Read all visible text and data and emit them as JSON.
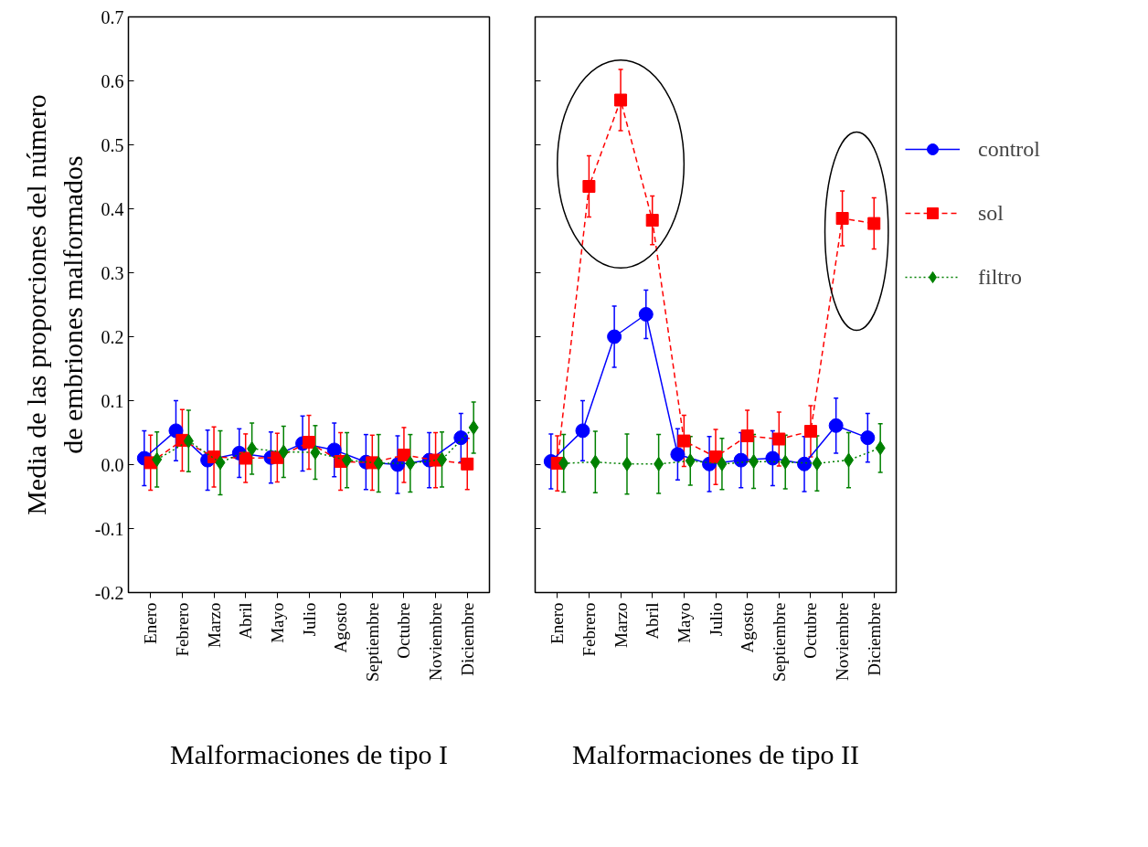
{
  "chart_data": [
    {
      "type": "line",
      "xlabel": "Malformaciones de tipo I",
      "ylabel": "Media de las proporciones del número de embriones malformados",
      "categories": [
        "Enero",
        "Febrero",
        "Marzo",
        "Abril",
        "Mayo",
        "Julio",
        "Agosto",
        "Septiembre",
        "Octubre",
        "Noviembre",
        "Diciembre"
      ],
      "ylim": [
        -0.2,
        0.7
      ],
      "yticks": [
        -0.2,
        -0.1,
        {
          "value": 0,
          "label": "0.0"
        },
        0.1,
        0.2,
        0.3,
        0.4,
        0.5,
        0.6,
        0.7
      ],
      "grid": false,
      "series": [
        {
          "color": "#0000ff",
          "marker": "circle",
          "line_style": "solid",
          "values": [
            0.01,
            0.053,
            0.007,
            0.018,
            0.011,
            0.033,
            0.023,
            0.004,
            0.0,
            0.007,
            0.042
          ],
          "errors": [
            0.043,
            0.047,
            0.047,
            0.038,
            0.04,
            0.043,
            0.042,
            0.043,
            0.045,
            0.043,
            0.038
          ]
        },
        {
          "color": "#ff0000",
          "marker": "square",
          "line_style": "dashed",
          "values": [
            0.003,
            0.038,
            0.012,
            0.01,
            0.011,
            0.035,
            0.005,
            0.003,
            0.015,
            0.007,
            0.001
          ],
          "errors": [
            0.043,
            0.048,
            0.047,
            0.038,
            0.038,
            0.042,
            0.045,
            0.043,
            0.043,
            0.043,
            0.04
          ]
        },
        {
          "color": "#008000",
          "marker": "diamond",
          "line_style": "dotted",
          "values": [
            0.008,
            0.037,
            0.003,
            0.025,
            0.02,
            0.019,
            0.007,
            0.002,
            0.002,
            0.008,
            0.058
          ],
          "errors": [
            0.043,
            0.048,
            0.05,
            0.04,
            0.04,
            0.042,
            0.043,
            0.045,
            0.045,
            0.043,
            0.04
          ]
        }
      ]
    },
    {
      "type": "line",
      "xlabel": "Malformaciones de tipo II",
      "categories": [
        "Enero",
        "Febrero",
        "Marzo",
        "Abril",
        "Mayo",
        "Julio",
        "Agosto",
        "Septiembre",
        "Octubre",
        "Noviembre",
        "Diciembre"
      ],
      "ylim": [
        -0.2,
        0.7
      ],
      "yticks": [
        -0.2,
        -0.1,
        0,
        0.1,
        0.2,
        0.3,
        0.4,
        0.5,
        0.6,
        0.7
      ],
      "tick_labels": "x",
      "grid": false,
      "legend": "right",
      "series": [
        {
          "name": "control",
          "color": "#0000ff",
          "marker": "circle",
          "line_style": "solid",
          "values": [
            0.005,
            0.053,
            0.2,
            0.235,
            0.016,
            0.001,
            0.007,
            0.01,
            0.001,
            0.061,
            0.042
          ],
          "errors": [
            0.043,
            0.047,
            0.048,
            0.038,
            0.04,
            0.043,
            0.043,
            0.043,
            0.043,
            0.043,
            0.038
          ]
        },
        {
          "name": "sol",
          "color": "#ff0000",
          "marker": "square",
          "line_style": "dashed",
          "values": [
            0.002,
            0.435,
            0.57,
            0.382,
            0.037,
            0.012,
            0.045,
            0.04,
            0.052,
            0.385,
            0.377
          ],
          "errors": [
            0.043,
            0.048,
            0.048,
            0.038,
            0.04,
            0.043,
            0.04,
            0.042,
            0.04,
            0.043,
            0.04
          ]
        },
        {
          "name": "filtro",
          "color": "#008000",
          "marker": "diamond",
          "line_style": "dotted",
          "values": [
            0.002,
            0.004,
            0.001,
            0.001,
            0.006,
            0.001,
            0.005,
            0.004,
            0.002,
            0.007,
            0.026
          ],
          "errors": [
            0.045,
            0.048,
            0.047,
            0.046,
            0.038,
            0.04,
            0.042,
            0.042,
            0.043,
            0.043,
            0.038
          ]
        }
      ]
    }
  ]
}
